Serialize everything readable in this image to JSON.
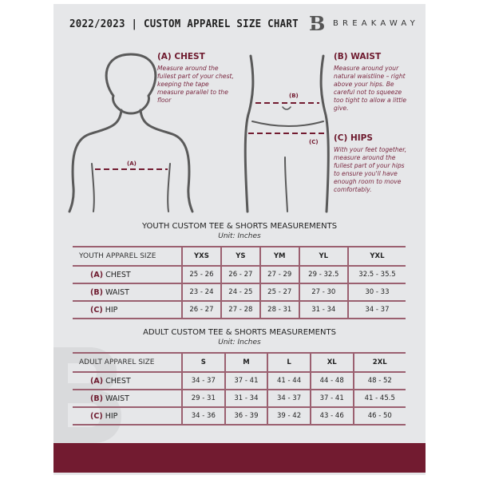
{
  "header": {
    "title": "2022/2023 | CUSTOM APPAREL SIZE CHART",
    "brand": "BREAKAWAY",
    "logo_letter": "B"
  },
  "measures": {
    "chest": {
      "title": "(A) CHEST",
      "text": "Measure around the fullest part of your chest, keeping the tape measure parallel to the floor",
      "marker": "(A)"
    },
    "waist": {
      "title": "(B) WAIST",
      "text": "Measure around your natural waistline – right above your hips. Be careful not to squeeze too tight to allow a little give.",
      "marker": "(B)"
    },
    "hips": {
      "title": "(C) HIPS",
      "text": "With your feet together, measure around the fullest part of your hips to ensure you'll have enough room to move comfortably.",
      "marker": "(C)"
    }
  },
  "youth": {
    "title": "YOUTH CUSTOM TEE & SHORTS MEASUREMENTS",
    "unit": "Unit: Inches",
    "header": "YOUTH APPAREL SIZE",
    "sizes": [
      "YXS",
      "YS",
      "YM",
      "YL",
      "YXL"
    ],
    "rows": [
      {
        "code": "(A)",
        "name": "CHEST",
        "values": [
          "25 - 26",
          "26 - 27",
          "27 - 29",
          "29 - 32.5",
          "32.5 - 35.5"
        ]
      },
      {
        "code": "(B)",
        "name": "WAIST",
        "values": [
          "23 - 24",
          "24 - 25",
          "25 - 27",
          "27 - 30",
          "30 - 33"
        ]
      },
      {
        "code": "(C)",
        "name": "HIP",
        "values": [
          "26 - 27",
          "27 - 28",
          "28 - 31",
          "31 - 34",
          "34 - 37"
        ]
      }
    ]
  },
  "adult": {
    "title": "ADULT CUSTOM TEE & SHORTS MEASUREMENTS",
    "unit": "Unit: Inches",
    "header": "ADULT APPAREL SIZE",
    "sizes": [
      "S",
      "M",
      "L",
      "XL",
      "2XL"
    ],
    "rows": [
      {
        "code": "(A)",
        "name": "CHEST",
        "values": [
          "34 - 37",
          "37 - 41",
          "41 - 44",
          "44 - 48",
          "48 - 52"
        ]
      },
      {
        "code": "(B)",
        "name": "WAIST",
        "values": [
          "29 - 31",
          "31 - 34",
          "34 - 37",
          "37 - 41",
          "41 - 45.5"
        ]
      },
      {
        "code": "(C)",
        "name": "HIP",
        "values": [
          "34 - 36",
          "36 - 39",
          "39 - 42",
          "43 - 46",
          "46 - 50"
        ]
      }
    ]
  },
  "colors": {
    "accent": "#721b30",
    "background": "#e6e7e9"
  }
}
